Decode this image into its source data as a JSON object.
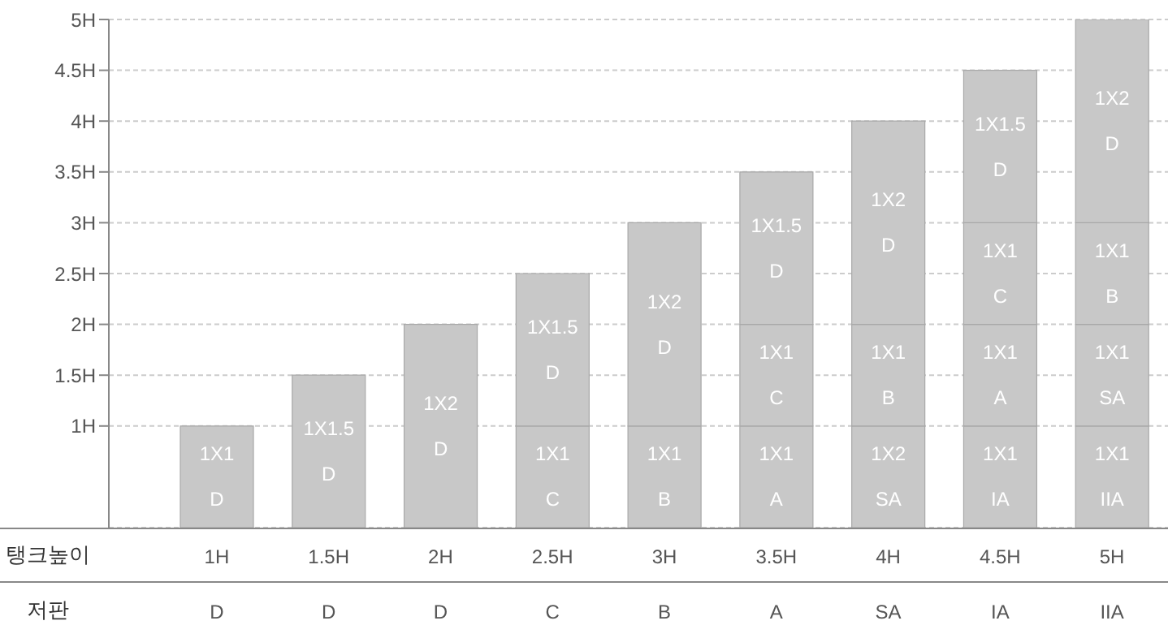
{
  "chart_data": {
    "type": "bar",
    "stacked": true,
    "xlabel": "탱크높이",
    "categories": [
      "1H",
      "1.5H",
      "2H",
      "2.5H",
      "3H",
      "3.5H",
      "4H",
      "4.5H",
      "5H"
    ],
    "series": [
      {
        "color": "#c8c8c8",
        "values": [
          1,
          1.5,
          2,
          1,
          1,
          1,
          1,
          1,
          1
        ],
        "value_labels": [
          "1X1 D",
          "1X1.5 D",
          "1X2 D",
          "1X1 C",
          "1X1 B",
          "1X1 A",
          "1X2 SA",
          "1X1 IA",
          "1X1 IIA"
        ]
      },
      {
        "color": "#c8c8c8",
        "values": [
          null,
          null,
          null,
          1.5,
          2,
          1,
          1,
          1,
          1
        ],
        "value_labels": [
          null,
          null,
          null,
          "1X1.5 D",
          "1X2 D",
          "1X1 C",
          "1X1 B",
          "1X1 A",
          "1X1 SA"
        ]
      },
      {
        "color": "#c8c8c8",
        "values": [
          null,
          null,
          null,
          null,
          null,
          1.5,
          2,
          1,
          1
        ],
        "value_labels": [
          null,
          null,
          null,
          null,
          null,
          "1X1.5 D",
          "1X2 D",
          "1X1 C",
          "1X1 B"
        ]
      },
      {
        "color": "#c8c8c8",
        "values": [
          null,
          null,
          null,
          null,
          null,
          null,
          null,
          1.5,
          2
        ],
        "value_labels": [
          null,
          null,
          null,
          null,
          null,
          null,
          null,
          "1X1.5 D",
          "1X2 D"
        ]
      }
    ],
    "ylim": [
      0,
      5
    ],
    "yticks": [
      {
        "value": 1,
        "label": "1H"
      },
      {
        "value": 1.5,
        "label": "1.5H"
      },
      {
        "value": 2,
        "label": "2H"
      },
      {
        "value": 2.5,
        "label": "2.5H"
      },
      {
        "value": 3,
        "label": "3H"
      },
      {
        "value": 3.5,
        "label": "3.5H"
      },
      {
        "value": 4,
        "label": "4H"
      },
      {
        "value": 4.5,
        "label": "4.5H"
      },
      {
        "value": 5,
        "label": "5H"
      }
    ],
    "grid": "y",
    "annotations": [
      "저판",
      "D",
      "D",
      "D",
      "C",
      "B",
      "A",
      "SA",
      "IA",
      "IIA"
    ]
  }
}
